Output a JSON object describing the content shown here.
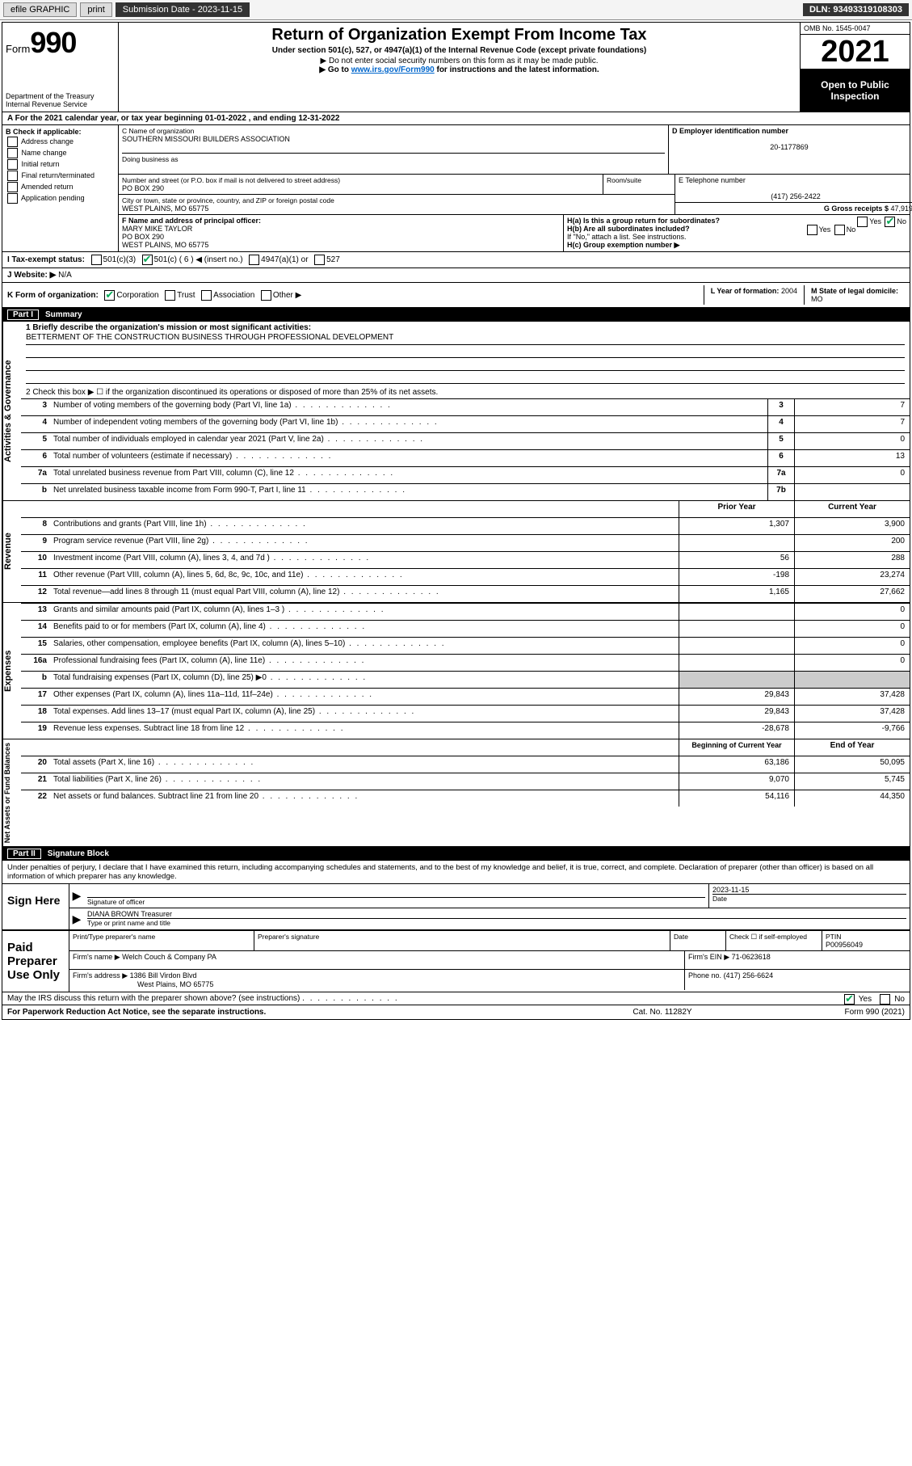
{
  "topbar": {
    "efile": "efile GRAPHIC",
    "print": "print",
    "sub_label": "Submission Date - 2023-11-15",
    "dln": "DLN: 93493319108303"
  },
  "header": {
    "form_prefix": "Form",
    "form_num": "990",
    "dept": "Department of the Treasury",
    "irs": "Internal Revenue Service",
    "title": "Return of Organization Exempt From Income Tax",
    "sub1": "Under section 501(c), 527, or 4947(a)(1) of the Internal Revenue Code (except private foundations)",
    "sub2": "▶ Do not enter social security numbers on this form as it may be made public.",
    "sub3_a": "▶ Go to ",
    "sub3_link": "www.irs.gov/Form990",
    "sub3_b": " for instructions and the latest information.",
    "omb": "OMB No. 1545-0047",
    "year": "2021",
    "open1": "Open to Public",
    "open2": "Inspection"
  },
  "rowA": {
    "text_a": "A For the 2021 calendar year, or tax year beginning ",
    "beg": "01-01-2022",
    "text_b": " , and ending ",
    "end": "12-31-2022"
  },
  "boxB": {
    "title": "B Check if applicable:",
    "items": [
      "Address change",
      "Name change",
      "Initial return",
      "Final return/terminated",
      "Amended return",
      "Application pending"
    ]
  },
  "boxC": {
    "name_lbl": "C Name of organization",
    "name": "SOUTHERN MISSOURI BUILDERS ASSOCIATION",
    "dba_lbl": "Doing business as",
    "street_lbl": "Number and street (or P.O. box if mail is not delivered to street address)",
    "room_lbl": "Room/suite",
    "street": "PO BOX 290",
    "city_lbl": "City or town, state or province, country, and ZIP or foreign postal code",
    "city": "WEST PLAINS, MO  65775"
  },
  "boxD": {
    "lbl": "D Employer identification number",
    "val": "20-1177869"
  },
  "boxE": {
    "lbl": "E Telephone number",
    "val": "(417) 256-2422"
  },
  "boxG": {
    "lbl": "G Gross receipts $",
    "val": "47,919"
  },
  "boxF": {
    "lbl": "F Name and address of principal officer:",
    "name": "MARY MIKE TAYLOR",
    "street": "PO BOX 290",
    "city": "WEST PLAINS, MO  65775"
  },
  "boxH": {
    "ha": "H(a)  Is this a group return for subordinates?",
    "ha_yes": "Yes",
    "ha_no": "No",
    "hb": "H(b)  Are all subordinates included?",
    "hb_yes": "Yes",
    "hb_no": "No",
    "hb_note": "If \"No,\" attach a list. See instructions.",
    "hc": "H(c)  Group exemption number ▶"
  },
  "rowI": {
    "lbl": "I   Tax-exempt status:",
    "o1": "501(c)(3)",
    "o2": "501(c) ( 6 ) ◀ (insert no.)",
    "o3": "4947(a)(1) or",
    "o4": "527"
  },
  "rowJ": {
    "lbl": "J   Website: ▶",
    "val": "N/A"
  },
  "rowK": {
    "lbl": "K Form of organization:",
    "o1": "Corporation",
    "o2": "Trust",
    "o3": "Association",
    "o4": "Other ▶",
    "l_lbl": "L Year of formation:",
    "l_val": "2004",
    "m_lbl": "M State of legal domicile:",
    "m_val": "MO"
  },
  "part1": {
    "hdr": "Part I",
    "title": "Summary",
    "line1_lbl": "1   Briefly describe the organization's mission or most significant activities:",
    "mission": "BETTERMENT OF THE CONSTRUCTION BUSINESS THROUGH PROFESSIONAL DEVELOPMENT",
    "line2": "2   Check this box ▶ ☐  if the organization discontinued its operations or disposed of more than 25% of its net assets.",
    "side_gov": "Activities & Governance",
    "side_rev": "Revenue",
    "side_exp": "Expenses",
    "side_net": "Net Assets or Fund Balances",
    "col_prior": "Prior Year",
    "col_curr": "Current Year",
    "col_beg": "Beginning of Current Year",
    "col_end": "End of Year",
    "rows_gov": [
      {
        "n": "3",
        "d": "Number of voting members of the governing body (Part VI, line 1a)",
        "box": "3",
        "v": "7"
      },
      {
        "n": "4",
        "d": "Number of independent voting members of the governing body (Part VI, line 1b)",
        "box": "4",
        "v": "7"
      },
      {
        "n": "5",
        "d": "Total number of individuals employed in calendar year 2021 (Part V, line 2a)",
        "box": "5",
        "v": "0"
      },
      {
        "n": "6",
        "d": "Total number of volunteers (estimate if necessary)",
        "box": "6",
        "v": "13"
      },
      {
        "n": "7a",
        "d": "Total unrelated business revenue from Part VIII, column (C), line 12",
        "box": "7a",
        "v": "0"
      },
      {
        "n": "b",
        "d": "Net unrelated business taxable income from Form 990-T, Part I, line 11",
        "box": "7b",
        "v": ""
      }
    ],
    "rows_rev": [
      {
        "n": "8",
        "d": "Contributions and grants (Part VIII, line 1h)",
        "p": "1,307",
        "c": "3,900"
      },
      {
        "n": "9",
        "d": "Program service revenue (Part VIII, line 2g)",
        "p": "",
        "c": "200"
      },
      {
        "n": "10",
        "d": "Investment income (Part VIII, column (A), lines 3, 4, and 7d )",
        "p": "56",
        "c": "288"
      },
      {
        "n": "11",
        "d": "Other revenue (Part VIII, column (A), lines 5, 6d, 8c, 9c, 10c, and 11e)",
        "p": "-198",
        "c": "23,274"
      },
      {
        "n": "12",
        "d": "Total revenue—add lines 8 through 11 (must equal Part VIII, column (A), line 12)",
        "p": "1,165",
        "c": "27,662"
      }
    ],
    "rows_exp": [
      {
        "n": "13",
        "d": "Grants and similar amounts paid (Part IX, column (A), lines 1–3 )",
        "p": "",
        "c": "0"
      },
      {
        "n": "14",
        "d": "Benefits paid to or for members (Part IX, column (A), line 4)",
        "p": "",
        "c": "0"
      },
      {
        "n": "15",
        "d": "Salaries, other compensation, employee benefits (Part IX, column (A), lines 5–10)",
        "p": "",
        "c": "0"
      },
      {
        "n": "16a",
        "d": "Professional fundraising fees (Part IX, column (A), line 11e)",
        "p": "",
        "c": "0"
      },
      {
        "n": "b",
        "d": "Total fundraising expenses (Part IX, column (D), line 25) ▶0",
        "p": "SHADE",
        "c": "SHADE"
      },
      {
        "n": "17",
        "d": "Other expenses (Part IX, column (A), lines 11a–11d, 11f–24e)",
        "p": "29,843",
        "c": "37,428"
      },
      {
        "n": "18",
        "d": "Total expenses. Add lines 13–17 (must equal Part IX, column (A), line 25)",
        "p": "29,843",
        "c": "37,428"
      },
      {
        "n": "19",
        "d": "Revenue less expenses. Subtract line 18 from line 12",
        "p": "-28,678",
        "c": "-9,766"
      }
    ],
    "rows_net": [
      {
        "n": "20",
        "d": "Total assets (Part X, line 16)",
        "p": "63,186",
        "c": "50,095"
      },
      {
        "n": "21",
        "d": "Total liabilities (Part X, line 26)",
        "p": "9,070",
        "c": "5,745"
      },
      {
        "n": "22",
        "d": "Net assets or fund balances. Subtract line 21 from line 20",
        "p": "54,116",
        "c": "44,350"
      }
    ]
  },
  "part2": {
    "hdr": "Part II",
    "title": "Signature Block",
    "intro": "Under penalties of perjury, I declare that I have examined this return, including accompanying schedules and statements, and to the best of my knowledge and belief, it is true, correct, and complete. Declaration of preparer (other than officer) is based on all information of which preparer has any knowledge.",
    "sign_here": "Sign Here",
    "sig_officer_lbl": "Signature of officer",
    "date_lbl": "Date",
    "date_val": "2023-11-15",
    "name_title": "DIANA BROWN Treasurer",
    "name_title_lbl": "Type or print name and title",
    "paid": "Paid Preparer Use Only",
    "prep_name_lbl": "Print/Type preparer's name",
    "prep_sig_lbl": "Preparer's signature",
    "prep_date_lbl": "Date",
    "check_self": "Check ☐ if self-employed",
    "ptin_lbl": "PTIN",
    "ptin": "P00956049",
    "firm_name_lbl": "Firm's name  ▶",
    "firm_name": "Welch Couch & Company PA",
    "firm_ein_lbl": "Firm's EIN ▶",
    "firm_ein": "71-0623618",
    "firm_addr_lbl": "Firm's address ▶",
    "firm_addr1": "1386 Bill Virdon Blvd",
    "firm_addr2": "West Plains, MO  65775",
    "phone_lbl": "Phone no.",
    "phone": "(417) 256-6624",
    "discuss": "May the IRS discuss this return with the preparer shown above? (see instructions)",
    "yes": "Yes",
    "no": "No"
  },
  "footer": {
    "pra": "For Paperwork Reduction Act Notice, see the separate instructions.",
    "cat": "Cat. No. 11282Y",
    "form": "Form 990 (2021)"
  }
}
